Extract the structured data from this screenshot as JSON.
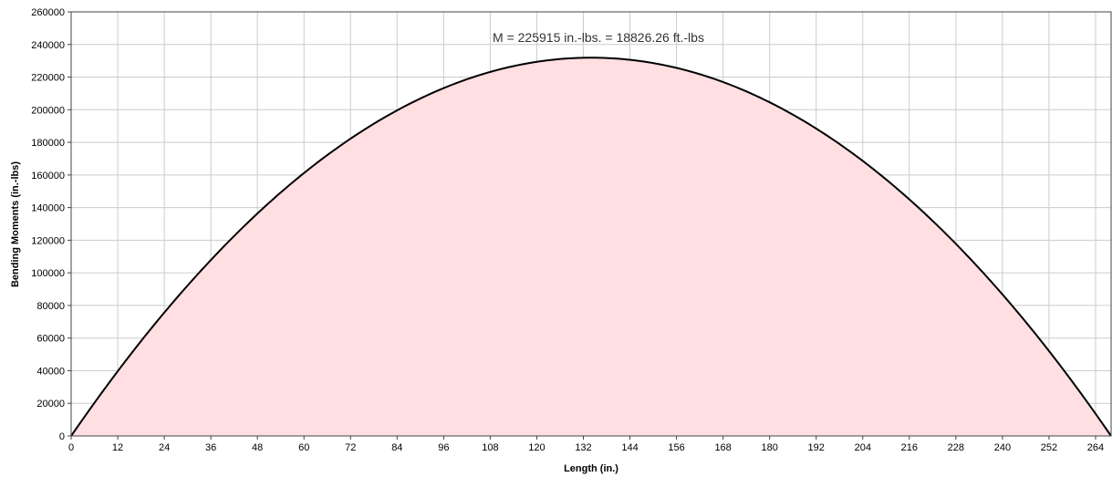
{
  "chart_data": {
    "type": "area",
    "xlabel": "Length (in.)",
    "ylabel": "Bending Moments (in.-lbs)",
    "annotation": "M = 225915 in.-lbs. = 18826.26 ft.-lbs",
    "xlim": [
      0,
      268
    ],
    "ylim": [
      0,
      260000
    ],
    "x_ticks": [
      "0",
      "12",
      "24",
      "36",
      "48",
      "60",
      "72",
      "84",
      "96",
      "108",
      "120",
      "132",
      "144",
      "156",
      "168",
      "180",
      "192",
      "204",
      "216",
      "228",
      "240",
      "252",
      "264"
    ],
    "y_ticks": [
      "0",
      "20000",
      "40000",
      "60000",
      "80000",
      "100000",
      "120000",
      "140000",
      "160000",
      "180000",
      "200000",
      "220000",
      "240000",
      "260000"
    ],
    "grid": true,
    "fill_color": "#ffdfe1",
    "line_color": "#000000",
    "series": [
      {
        "x": [
          0,
          12,
          24,
          36,
          48,
          60,
          72,
          84,
          96,
          108,
          120,
          132,
          134,
          144,
          156,
          168,
          180,
          192,
          204,
          216,
          228,
          240,
          252,
          264,
          268
        ],
        "values": [
          0,
          38450,
          73450,
          105000,
          133100,
          157700,
          178800,
          196500,
          210700,
          221300,
          228400,
          231900,
          225915,
          229700,
          224500,
          215400,
          202300,
          185000,
          163900,
          138600,
          109400,
          76000,
          38500,
          0,
          0
        ]
      }
    ]
  }
}
